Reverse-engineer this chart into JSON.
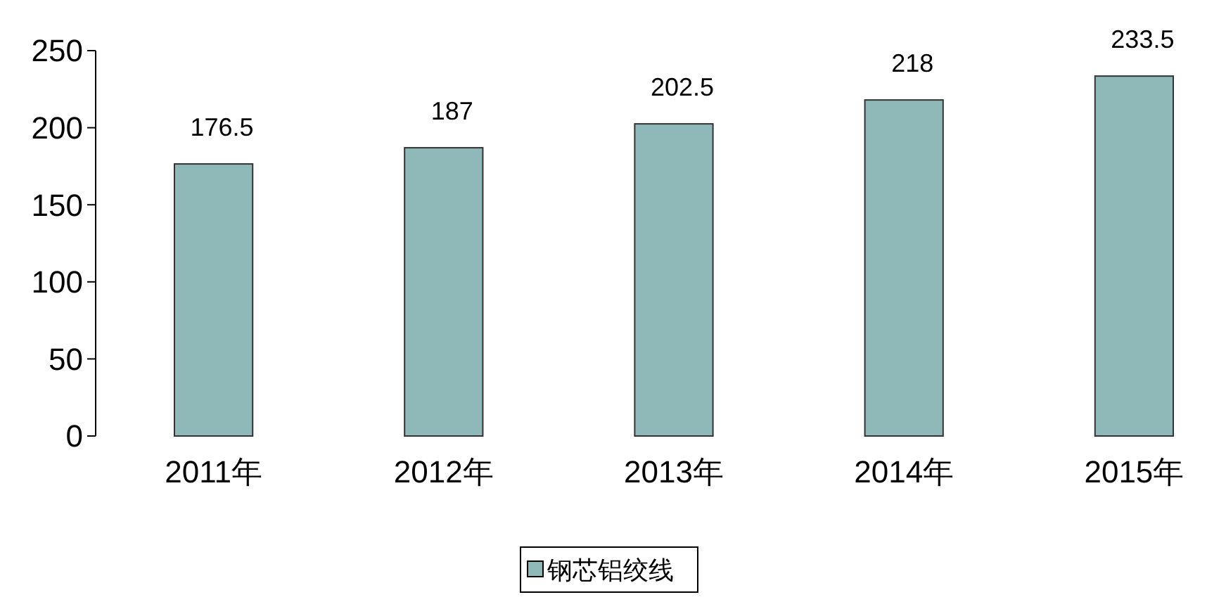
{
  "chart_data": {
    "type": "bar",
    "categories": [
      "2011年",
      "2012年",
      "2013年",
      "2014年",
      "2015年"
    ],
    "series": [
      {
        "name": "钢芯铝绞线",
        "color": "#8fb8b8",
        "values": [
          176.5,
          187,
          202.5,
          218,
          233.5
        ]
      }
    ],
    "ylim": [
      0,
      250
    ],
    "yticks": [
      0,
      50,
      100,
      150,
      200,
      250
    ],
    "data_labels": true,
    "legend": "bottom",
    "grid": false
  }
}
